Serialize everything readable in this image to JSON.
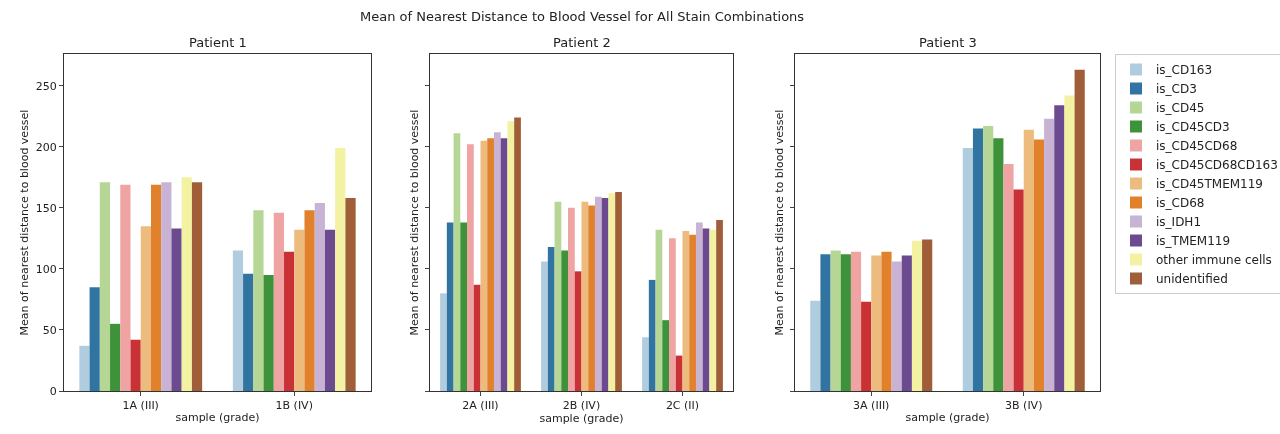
{
  "chart_data": [
    {
      "type": "bar",
      "title": "Patient 1",
      "annotations": [
        "Mean of Nearest Distance to Blood Vessel for All Stain Combinations"
      ],
      "xlabel": "sample (grade)",
      "ylabel": "Mean of nearest distance to blood vessel",
      "categories": [
        "1A (III)",
        "1B (IV)"
      ],
      "ylim": [
        0,
        276
      ],
      "yticks": [
        0,
        50,
        100,
        150,
        200,
        250
      ],
      "legend": false,
      "series": [
        {
          "color": "#b0cde0",
          "values": [
            37,
            115
          ]
        },
        {
          "color": "#3274a1",
          "values": [
            85,
            96
          ]
        },
        {
          "color": "#b5d695",
          "values": [
            171,
            148
          ]
        },
        {
          "color": "#3d923a",
          "values": [
            55,
            95
          ]
        },
        {
          "color": "#f0a3a3",
          "values": [
            169,
            146
          ]
        },
        {
          "color": "#c83236",
          "values": [
            42,
            114
          ]
        },
        {
          "color": "#ecbb7d",
          "values": [
            135,
            132
          ]
        },
        {
          "color": "#e1812c",
          "values": [
            169,
            148
          ]
        },
        {
          "color": "#c9b3d4",
          "values": [
            171,
            154
          ]
        },
        {
          "color": "#6b4a90",
          "values": [
            133,
            132
          ]
        },
        {
          "color": "#f2f2a2",
          "values": [
            175,
            199
          ]
        },
        {
          "color": "#a05e38",
          "values": [
            171,
            158
          ]
        }
      ]
    },
    {
      "type": "bar",
      "title": "Patient 2",
      "xlabel": "sample (grade)",
      "ylabel": "Mean of nearest distance to blood vessel",
      "categories": [
        "2A (III)",
        "2B (IV)",
        "2C (II)"
      ],
      "ylim": [
        0,
        276
      ],
      "yticks": [
        0,
        50,
        100,
        150,
        200,
        250
      ],
      "tick_labels": "x",
      "legend": false,
      "series": [
        {
          "color": "#b0cde0",
          "values": [
            80,
            106,
            44
          ]
        },
        {
          "color": "#3274a1",
          "values": [
            138,
            118,
            91
          ]
        },
        {
          "color": "#b5d695",
          "values": [
            211,
            155,
            132
          ]
        },
        {
          "color": "#3d923a",
          "values": [
            138,
            115,
            58
          ]
        },
        {
          "color": "#f0a3a3",
          "values": [
            202,
            150,
            125
          ]
        },
        {
          "color": "#c83236",
          "values": [
            87,
            98,
            29
          ]
        },
        {
          "color": "#ecbb7d",
          "values": [
            205,
            155,
            131
          ]
        },
        {
          "color": "#e1812c",
          "values": [
            207,
            152,
            128
          ]
        },
        {
          "color": "#c9b3d4",
          "values": [
            212,
            159,
            138
          ]
        },
        {
          "color": "#6b4a90",
          "values": [
            207,
            158,
            133
          ]
        },
        {
          "color": "#f2f2a2",
          "values": [
            221,
            162,
            132
          ]
        },
        {
          "color": "#a05e38",
          "values": [
            224,
            163,
            140
          ]
        }
      ]
    },
    {
      "type": "bar",
      "title": "Patient 3",
      "xlabel": "sample (grade)",
      "ylabel": "Mean of nearest distance to blood vessel",
      "categories": [
        "3A (III)",
        "3B (IV)"
      ],
      "ylim": [
        0,
        276
      ],
      "yticks": [
        0,
        50,
        100,
        150,
        200,
        250
      ],
      "tick_labels": "x",
      "legend": "right",
      "series": [
        {
          "name": "is_CD163",
          "color": "#b0cde0",
          "values": [
            74,
            199
          ]
        },
        {
          "name": "is_CD3",
          "color": "#3274a1",
          "values": [
            112,
            215
          ]
        },
        {
          "name": "is_CD45",
          "color": "#b5d695",
          "values": [
            115,
            217
          ]
        },
        {
          "name": "is_CD45CD3",
          "color": "#3d923a",
          "values": [
            112,
            207
          ]
        },
        {
          "name": "is_CD45CD68",
          "color": "#f0a3a3",
          "values": [
            114,
            186
          ]
        },
        {
          "name": "is_CD45CD68CD163",
          "color": "#c83236",
          "values": [
            73,
            165
          ]
        },
        {
          "name": "is_CD45TMEM119",
          "color": "#ecbb7d",
          "values": [
            111,
            214
          ]
        },
        {
          "name": "is_CD68",
          "color": "#e1812c",
          "values": [
            114,
            206
          ]
        },
        {
          "name": "is_IDH1",
          "color": "#c9b3d4",
          "values": [
            106,
            223
          ]
        },
        {
          "name": "is_TMEM119",
          "color": "#6b4a90",
          "values": [
            111,
            234
          ]
        },
        {
          "name": "other immune cells",
          "color": "#f2f2a2",
          "values": [
            123,
            242
          ]
        },
        {
          "name": "unidentified",
          "color": "#a05e38",
          "values": [
            124,
            263
          ]
        }
      ]
    }
  ]
}
